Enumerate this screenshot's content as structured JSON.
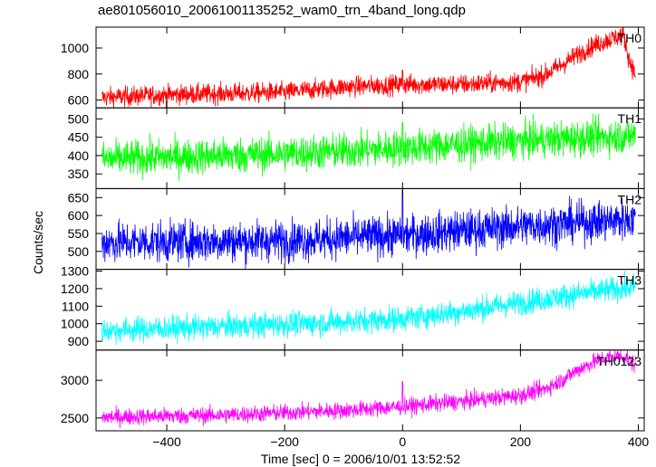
{
  "title": "ae801056010_20061001135252_wam0_trn_4band_long.qdp",
  "chart_data": {
    "type": "line",
    "title": "ae801056010_20061001135252_wam0_trn_4band_long.qdp",
    "xlabel": "Time [sec] 0 = 2006/10/01 13:52:52",
    "ylabel": "Counts/sec",
    "xlim": [
      -520,
      410
    ],
    "xticks": [
      -400,
      -200,
      0,
      200,
      400
    ],
    "xtick_labels": [
      "−400",
      "−200",
      "0",
      "200",
      "400"
    ],
    "x_data_range": [
      -510,
      395
    ],
    "shared_x": true,
    "grid": false,
    "panels": [
      {
        "label": "TH0",
        "color": "#ff0000",
        "ylim": [
          540,
          1160
        ],
        "yticks": [
          600,
          800,
          1000
        ],
        "ytick_labels": [
          "600",
          "800",
          "1000"
        ],
        "trend_points": [
          [
            -510,
            620
          ],
          [
            -400,
            640
          ],
          [
            -300,
            650
          ],
          [
            -200,
            660
          ],
          [
            -100,
            700
          ],
          [
            0,
            720
          ],
          [
            100,
            720
          ],
          [
            200,
            740
          ],
          [
            240,
            790
          ],
          [
            270,
            870
          ],
          [
            300,
            960
          ],
          [
            330,
            1030
          ],
          [
            360,
            1080
          ],
          [
            375,
            1100
          ],
          [
            385,
            900
          ],
          [
            395,
            800
          ]
        ],
        "noise": 38,
        "spikes": [
          [
            0,
            830
          ]
        ]
      },
      {
        "label": "TH1",
        "color": "#00ff00",
        "ylim": [
          310,
          530
        ],
        "yticks": [
          350,
          400,
          450,
          500
        ],
        "ytick_labels": [
          "350",
          "400",
          "450",
          "500"
        ],
        "trend_points": [
          [
            -510,
            390
          ],
          [
            -200,
            405
          ],
          [
            0,
            420
          ],
          [
            200,
            440
          ],
          [
            395,
            455
          ]
        ],
        "noise": 24,
        "spikes": [
          [
            0,
            490
          ]
        ]
      },
      {
        "label": "TH2",
        "color": "#0000ff",
        "ylim": [
          450,
          675
        ],
        "yticks": [
          500,
          550,
          600,
          650
        ],
        "ytick_labels": [
          "500",
          "550",
          "600",
          "650"
        ],
        "trend_points": [
          [
            -510,
            525
          ],
          [
            -200,
            530
          ],
          [
            0,
            545
          ],
          [
            200,
            570
          ],
          [
            395,
            590
          ]
        ],
        "noise": 28,
        "spikes": [
          [
            0,
            670
          ]
        ]
      },
      {
        "label": "TH3",
        "color": "#00ffff",
        "ylim": [
          850,
          1310
        ],
        "yticks": [
          900,
          1000,
          1100,
          1200,
          1300
        ],
        "ytick_labels": [
          "900",
          "1000",
          "1100",
          "1200",
          "1300"
        ],
        "trend_points": [
          [
            -510,
            960
          ],
          [
            -300,
            985
          ],
          [
            -100,
            1010
          ],
          [
            0,
            1030
          ],
          [
            100,
            1070
          ],
          [
            200,
            1120
          ],
          [
            300,
            1170
          ],
          [
            395,
            1210
          ]
        ],
        "noise": 35,
        "spikes": []
      },
      {
        "label": "TH0123",
        "color": "#ff00ff",
        "ylim": [
          2330,
          3400
        ],
        "yticks": [
          2500,
          3000
        ],
        "ytick_labels": [
          "2500",
          "3000"
        ],
        "trend_points": [
          [
            -510,
            2510
          ],
          [
            -300,
            2540
          ],
          [
            -100,
            2600
          ],
          [
            0,
            2650
          ],
          [
            100,
            2720
          ],
          [
            200,
            2800
          ],
          [
            240,
            2880
          ],
          [
            270,
            3000
          ],
          [
            300,
            3150
          ],
          [
            330,
            3260
          ],
          [
            360,
            3320
          ],
          [
            380,
            3300
          ],
          [
            395,
            3200
          ]
        ],
        "noise": 55,
        "spikes": [
          [
            0,
            2980
          ]
        ]
      }
    ]
  }
}
